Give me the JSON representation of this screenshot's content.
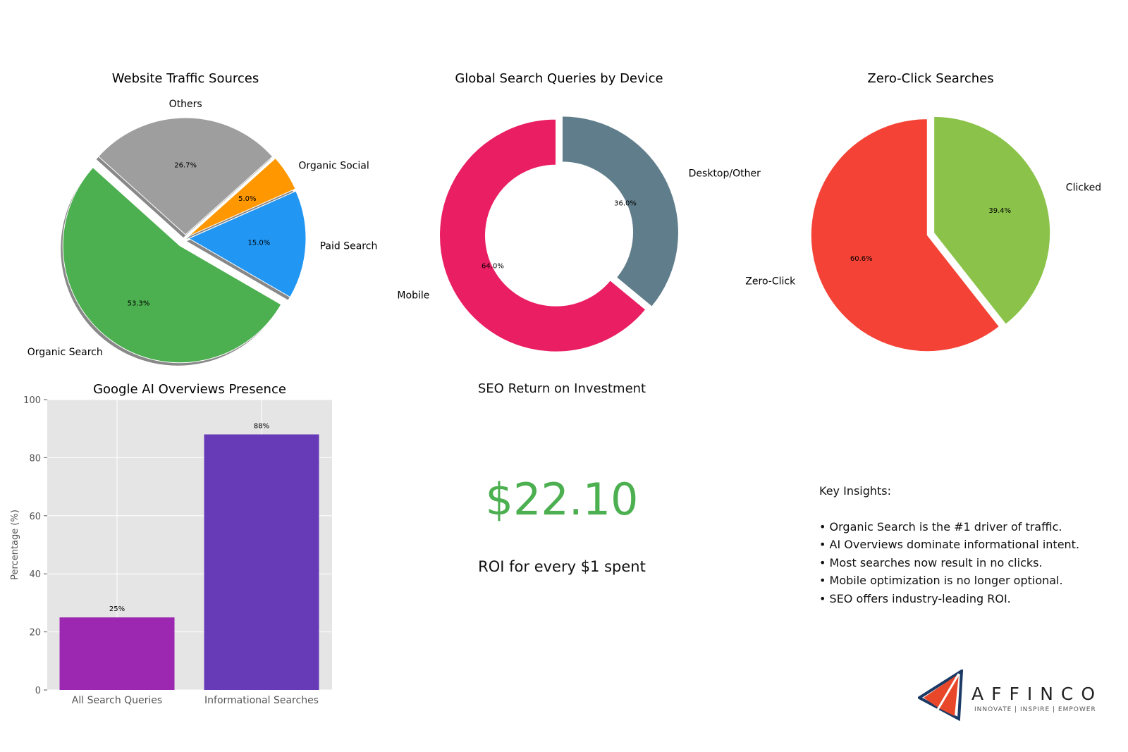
{
  "chart_data": [
    {
      "type": "pie",
      "title": "Website Traffic Sources",
      "slices": [
        {
          "label": "Organic Search",
          "value": 53.3,
          "color": "#4caf50",
          "explode": true
        },
        {
          "label": "Paid Search",
          "value": 15.0,
          "color": "#2196f3"
        },
        {
          "label": "Organic Social",
          "value": 5.0,
          "color": "#ff9800"
        },
        {
          "label": "Others",
          "value": 26.7,
          "color": "#9e9e9e"
        }
      ],
      "shadow": true
    },
    {
      "type": "pie",
      "subtype": "donut",
      "title": "Global Search Queries by Device",
      "slices": [
        {
          "label": "Desktop/Other",
          "value": 36.0,
          "color": "#607d8b"
        },
        {
          "label": "Mobile",
          "value": 64.0,
          "color": "#e91e63"
        }
      ]
    },
    {
      "type": "pie",
      "title": "Zero-Click Searches",
      "slices": [
        {
          "label": "Clicked",
          "value": 39.4,
          "color": "#8bc34a"
        },
        {
          "label": "Zero-Click",
          "value": 60.6,
          "color": "#f44336"
        }
      ]
    },
    {
      "type": "bar",
      "title": "Google AI Overviews Presence",
      "categories": [
        "All Search Queries",
        "Informational Searches"
      ],
      "values": [
        25,
        88
      ],
      "data_labels": [
        "25%",
        "88%"
      ],
      "colors": [
        "#9c27b0",
        "#673ab7"
      ],
      "ylabel": "Percentage (%)",
      "ylim": [
        0,
        100
      ],
      "yticks": [
        0,
        20,
        40,
        60,
        80,
        100
      ],
      "grid": true
    }
  ],
  "roi": {
    "title": "SEO Return on Investment",
    "value": "$22.10",
    "caption": "ROI for every $1 spent"
  },
  "insights": {
    "heading": "Key Insights:",
    "items": [
      "Organic Search is the #1 driver of traffic.",
      "AI Overviews dominate informational intent.",
      "Most searches now result in no clicks.",
      "Mobile optimization is no longer optional.",
      "SEO offers industry-leading ROI."
    ]
  },
  "logo": {
    "name": "AFFINCO",
    "tagline": "INNOVATE | INSPIRE | EMPOWER"
  }
}
